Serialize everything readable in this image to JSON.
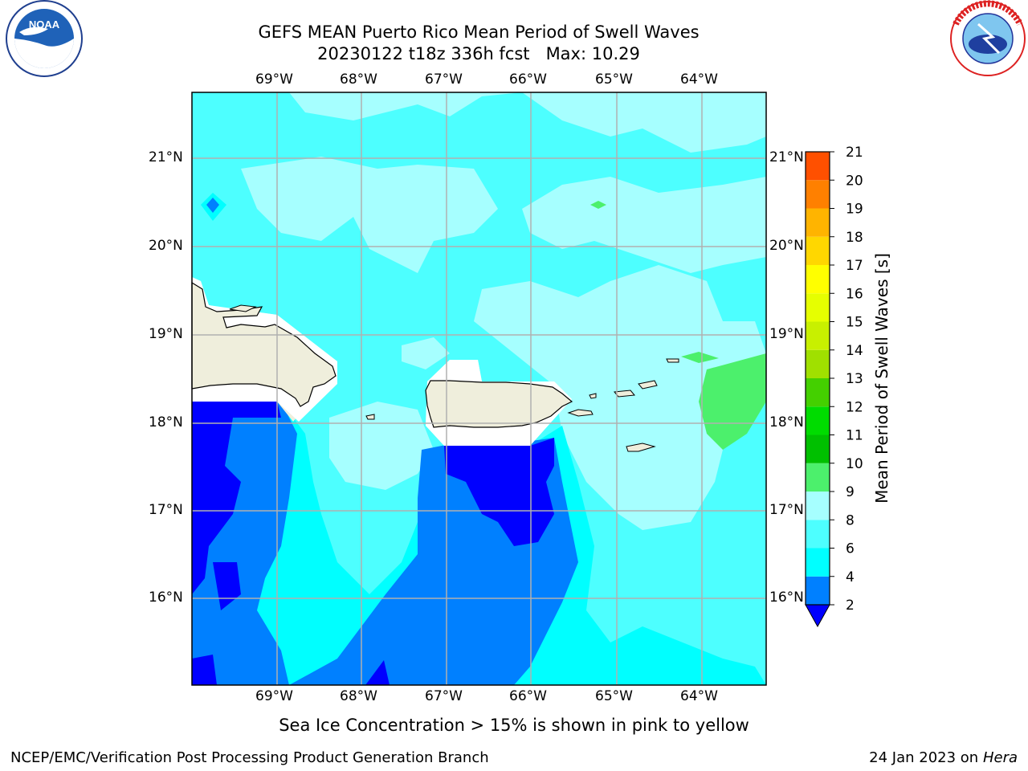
{
  "header": {
    "title_line1": "GEFS MEAN Puerto Rico Mean Period of Swell Waves",
    "title_line2": "20230122 t18z 336h fcst   Max: 10.29"
  },
  "logos": {
    "left": {
      "name": "noaa-logo",
      "text": "NOAA",
      "ring_text": "NATIONAL OCEANIC AND ATMOSPHERIC ADMINISTRATION · U.S. DEPARTMENT OF COMMERCE"
    },
    "right": {
      "name": "nws-logo",
      "ring_text": "NATIONAL WEATHER SERVICE"
    }
  },
  "map": {
    "lon_labels": [
      "69°W",
      "68°W",
      "67°W",
      "66°W",
      "65°W",
      "64°W"
    ],
    "lat_labels": [
      "21°N",
      "20°N",
      "19°N",
      "18°N",
      "17°N",
      "16°N"
    ],
    "colors": {
      "ocean_6_8": "#4dffff",
      "ocean_8_9": "#a6ffff",
      "ocean_4_6": "#00ffff",
      "ocean_2_4": "#0080ff",
      "ocean_lt2": "#0000ff",
      "ocean_9_10": "#4cf06c",
      "land": "#efeedc"
    }
  },
  "colorbar": {
    "label": "Mean Period of Swell Waves [s]",
    "ticks": [
      "2",
      "4",
      "6",
      "8",
      "9",
      "10",
      "11",
      "12",
      "13",
      "14",
      "15",
      "16",
      "17",
      "18",
      "19",
      "20",
      "21"
    ],
    "colors": [
      "#0080ff",
      "#00ffff",
      "#4dffff",
      "#a6ffff",
      "#4cf06c",
      "#00c000",
      "#00dc00",
      "#44d000",
      "#a0e000",
      "#c8f000",
      "#e6ff00",
      "#ffff00",
      "#ffd700",
      "#ffb400",
      "#ff8000",
      "#ff5000",
      "#ff1e00",
      "#ff0000"
    ],
    "under_color": "#0000ff"
  },
  "caption": "Sea Ice Concentration > 15% is shown in pink to yellow",
  "footer": {
    "left": "NCEP/EMC/Verification Post Processing Product Generation Branch",
    "right_prefix": "24 Jan 2023 on ",
    "right_machine": "Hera"
  }
}
